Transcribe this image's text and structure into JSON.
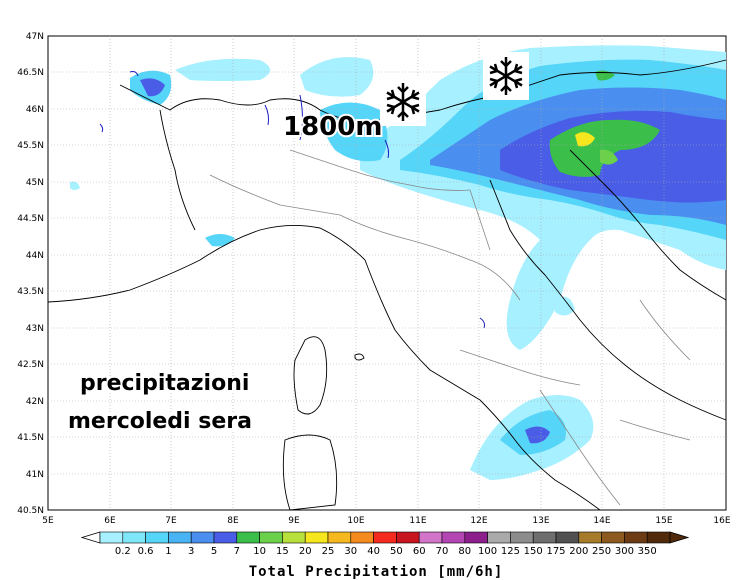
{
  "map": {
    "lat_labels": [
      "47N",
      "46.5N",
      "46N",
      "45.5N",
      "45N",
      "44.5N",
      "44N",
      "43.5N",
      "43N",
      "42.5N",
      "42N",
      "41.5N",
      "41N",
      "40.5N"
    ],
    "lon_labels": [
      "5E",
      "6E",
      "7E",
      "8E",
      "9E",
      "10E",
      "11E",
      "12E",
      "13E",
      "14E",
      "15E",
      "16E"
    ],
    "snow_icons": [
      "snowflake-icon",
      "snowflake-icon"
    ]
  },
  "annotations": {
    "altitude": "1800m",
    "caption_line1": "precipitazioni",
    "caption_line2": "mercoledi sera"
  },
  "colorbar": {
    "title": "Total Precipitation [mm/6h]",
    "labels": [
      "0.2",
      "0.6",
      "1",
      "3",
      "5",
      "7",
      "10",
      "15",
      "20",
      "25",
      "30",
      "40",
      "50",
      "60",
      "70",
      "80",
      "100",
      "125",
      "150",
      "175",
      "200",
      "250",
      "300",
      "350"
    ],
    "colors": [
      "#a6f0ff",
      "#7fe6f7",
      "#55d5f7",
      "#4ab3f4",
      "#4a8ef0",
      "#4a5de6",
      "#3cbf4a",
      "#6bd14a",
      "#b8e03c",
      "#f5e61e",
      "#f5b81e",
      "#f58a1e",
      "#f52a1e",
      "#c8141e",
      "#d274c8",
      "#b446b4",
      "#8c1e8c",
      "#aaaaaa",
      "#8c8c8c",
      "#6e6e6e",
      "#505050",
      "#a67c2a",
      "#8c5a1e",
      "#6e3c14",
      "#502a0a"
    ]
  }
}
